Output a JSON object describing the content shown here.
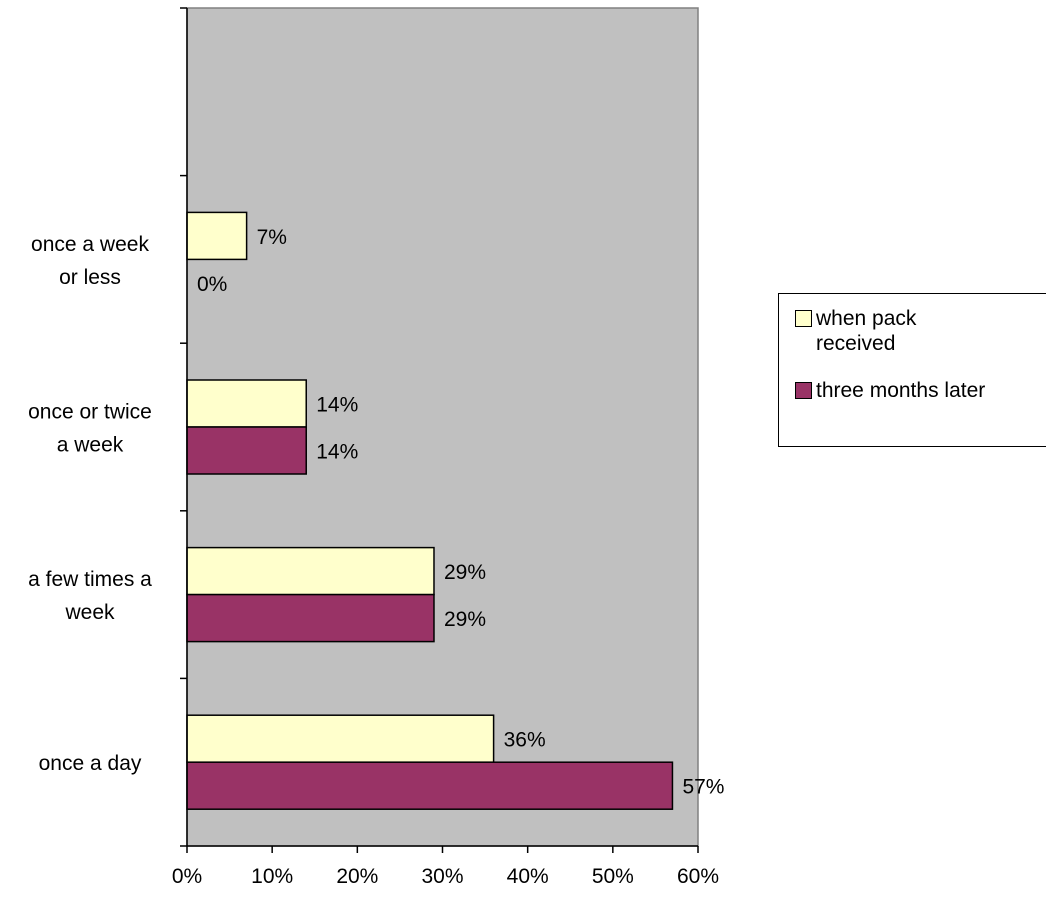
{
  "chart_data": {
    "type": "bar",
    "orientation": "horizontal",
    "categories": [
      "once a week or less",
      "once or twice a week",
      "a few times a week",
      "once a day"
    ],
    "category_label_lines": [
      [
        "once a week",
        "or less"
      ],
      [
        "once or twice",
        "a week"
      ],
      [
        "a few times a",
        "week"
      ],
      [
        "once a day"
      ]
    ],
    "series": [
      {
        "name": "when pack received",
        "values": [
          7,
          14,
          29,
          36
        ],
        "labels": [
          "7%",
          "14%",
          "29%",
          "36%"
        ],
        "color": "#FFFFCC"
      },
      {
        "name": "three months later",
        "values": [
          0,
          14,
          29,
          57
        ],
        "labels": [
          "0%",
          "14%",
          "29%",
          "57%"
        ],
        "color": "#993366"
      }
    ],
    "xlim": [
      0,
      60
    ],
    "xticks": [
      0,
      10,
      20,
      30,
      40,
      50,
      60
    ],
    "xtick_labels": [
      "0%",
      "10%",
      "20%",
      "30%",
      "40%",
      "50%",
      "60%"
    ],
    "title": "",
    "xlabel": "",
    "ylabel": "",
    "plot_background": "#C0C0C0",
    "grid": false,
    "legend_position": "right"
  },
  "legend": {
    "items": [
      {
        "lines": [
          "when pack",
          "received"
        ],
        "color": "#FFFFCC"
      },
      {
        "lines": [
          "three months later"
        ],
        "color": "#993366"
      }
    ]
  }
}
